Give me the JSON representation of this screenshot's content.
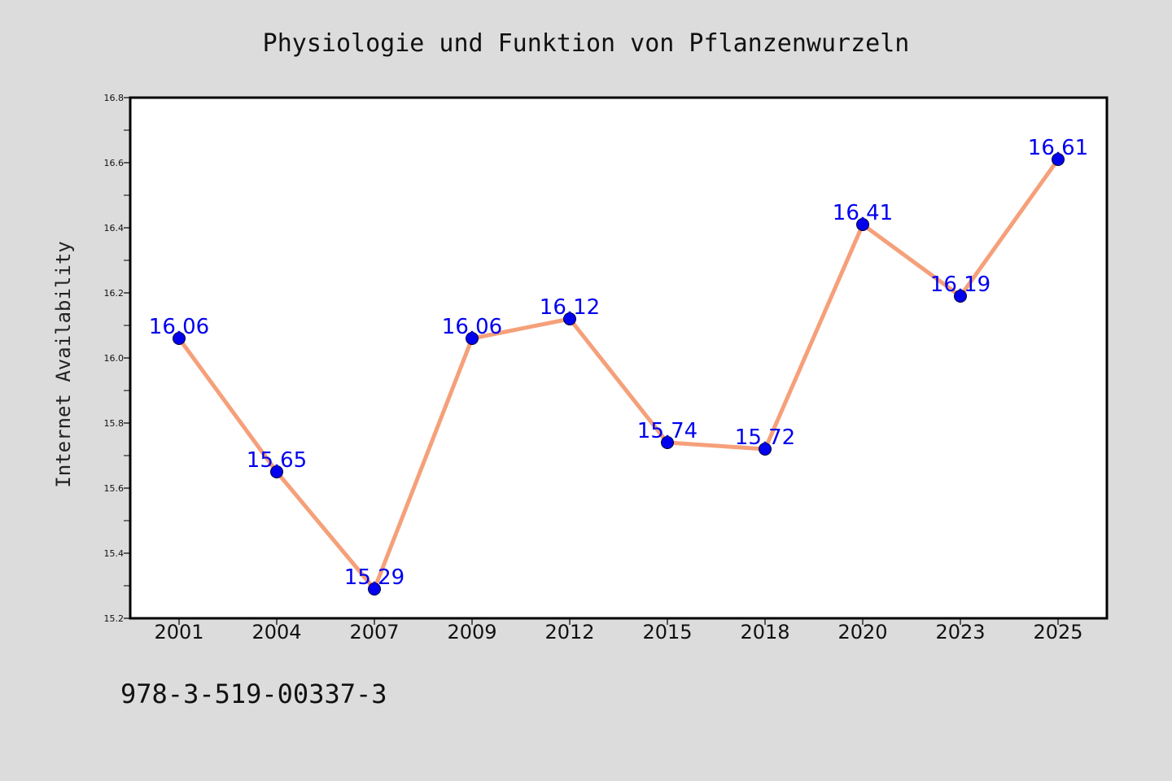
{
  "chart_data": {
    "type": "line",
    "title": "Physiologie und Funktion von Pflanzenwurzeln",
    "xlabel": "",
    "ylabel": "Internet Availability",
    "categories": [
      "2001",
      "2004",
      "2007",
      "2009",
      "2012",
      "2015",
      "2018",
      "2020",
      "2023",
      "2025"
    ],
    "values": [
      16.06,
      15.65,
      15.29,
      16.06,
      16.12,
      15.74,
      15.72,
      16.41,
      16.19,
      16.61
    ],
    "ylim": [
      15.2,
      16.8
    ],
    "yticks": [
      "15.2",
      "15.4",
      "15.6",
      "15.8",
      "16.0",
      "16.2",
      "16.4",
      "16.6",
      "16.8"
    ],
    "data_labels": [
      "16.06",
      "15.65",
      "15.29",
      "16.06",
      "16.12",
      "15.74",
      "15.72",
      "16.41",
      "16.19",
      "16.61"
    ],
    "grid": false,
    "legend": "none"
  },
  "footer": {
    "isbn": "978-3-519-00337-3"
  },
  "colors": {
    "line": "#f5a07a",
    "marker": "#0000ee",
    "label": "#0000ee",
    "background": "#dcdcdc",
    "plot_background": "#ffffff"
  }
}
